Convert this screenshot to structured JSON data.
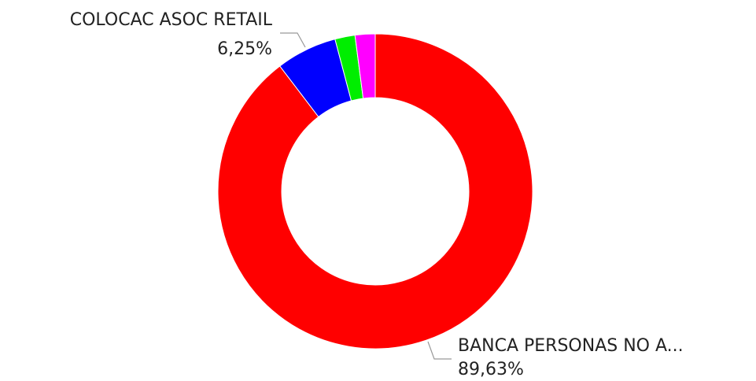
{
  "chart_data": {
    "type": "pie",
    "donut": true,
    "title": "",
    "slices": [
      {
        "label": "BANCA PERSONAS NO A...",
        "value": 89.63,
        "value_label": "89,63%",
        "color": "#ff0000"
      },
      {
        "label": "COLOCAC ASOC RETAIL",
        "value": 6.25,
        "value_label": "6,25%",
        "color": "#0000ff"
      },
      {
        "label": "",
        "value": 2.06,
        "value_label": "",
        "color": "#00ee00"
      },
      {
        "label": "",
        "value": 2.06,
        "value_label": "",
        "color": "#ff00ff"
      }
    ]
  }
}
